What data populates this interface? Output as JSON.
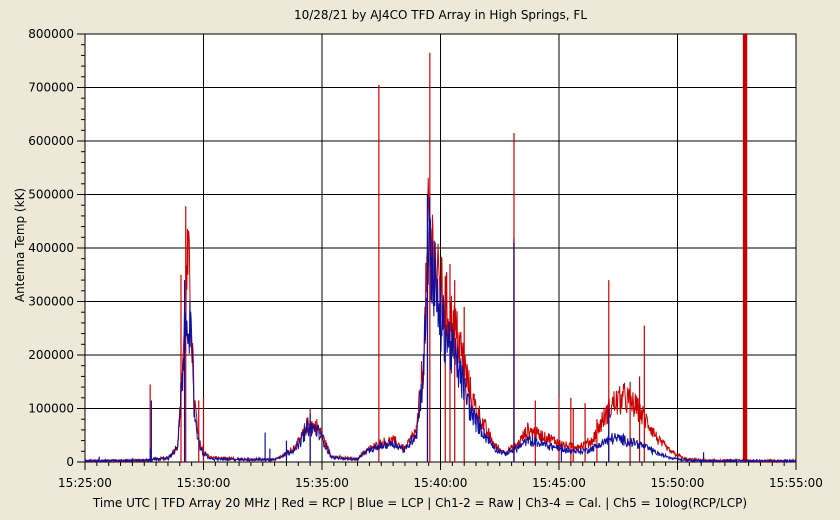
{
  "chart_data": {
    "type": "line",
    "title": "10/28/21  by  AJ4CO TFD Array  in  High Springs, FL",
    "ylabel": "Antenna Temp (kK)",
    "caption": "Time UTC | TFD Array 20 MHz | Red = RCP | Blue = LCP | Ch1-2 = Raw | Ch3-4 = Cal. | Ch5 = 10log(RCP/LCP)",
    "x_ticks": [
      "15:25:00",
      "15:30:00",
      "15:35:00",
      "15:40:00",
      "15:45:00",
      "15:50:00",
      "15:55:00"
    ],
    "xlim_minutes": [
      0,
      30
    ],
    "ylim": [
      0,
      800000
    ],
    "y_ticks": [
      0,
      100000,
      200000,
      300000,
      400000,
      500000,
      600000,
      700000,
      800000
    ],
    "grid": true,
    "series": [
      {
        "name": "RCP",
        "color": "#cc0000",
        "baseline": [
          [
            0,
            2000
          ],
          [
            2.5,
            3000
          ],
          [
            3.5,
            8000
          ],
          [
            3.9,
            30000
          ],
          [
            4.0,
            90000
          ],
          [
            4.2,
            250000
          ],
          [
            4.35,
            380000
          ],
          [
            4.5,
            250000
          ],
          [
            4.6,
            120000
          ],
          [
            4.8,
            40000
          ],
          [
            5.0,
            20000
          ],
          [
            5.3,
            8000
          ],
          [
            6.5,
            5000
          ],
          [
            8.0,
            5000
          ],
          [
            8.5,
            15000
          ],
          [
            9.0,
            35000
          ],
          [
            9.4,
            70000
          ],
          [
            9.8,
            65000
          ],
          [
            10.1,
            40000
          ],
          [
            10.4,
            10000
          ],
          [
            11.5,
            5000
          ],
          [
            11.8,
            20000
          ],
          [
            12.5,
            35000
          ],
          [
            13.0,
            40000
          ],
          [
            13.5,
            25000
          ],
          [
            14.0,
            60000
          ],
          [
            14.3,
            200000
          ],
          [
            14.5,
            450000
          ],
          [
            14.9,
            330000
          ],
          [
            15.3,
            280000
          ],
          [
            15.8,
            220000
          ],
          [
            16.3,
            120000
          ],
          [
            16.8,
            70000
          ],
          [
            17.3,
            30000
          ],
          [
            17.7,
            18000
          ],
          [
            18.2,
            30000
          ],
          [
            18.7,
            60000
          ],
          [
            19.2,
            50000
          ],
          [
            19.8,
            40000
          ],
          [
            20.3,
            30000
          ],
          [
            21.0,
            30000
          ],
          [
            21.4,
            40000
          ],
          [
            21.8,
            75000
          ],
          [
            22.3,
            110000
          ],
          [
            22.8,
            120000
          ],
          [
            23.3,
            100000
          ],
          [
            23.8,
            70000
          ],
          [
            24.2,
            40000
          ],
          [
            24.7,
            20000
          ],
          [
            25.3,
            6000
          ],
          [
            26.0,
            3000
          ],
          [
            30,
            2000
          ]
        ],
        "spikes": [
          [
            2.75,
            145000
          ],
          [
            4.05,
            350000
          ],
          [
            4.25,
            478000
          ],
          [
            4.8,
            115000
          ],
          [
            5.0,
            120000
          ],
          [
            9.5,
            100000
          ],
          [
            12.4,
            705000
          ],
          [
            14.45,
            500000
          ],
          [
            14.55,
            765000
          ],
          [
            15.2,
            300000
          ],
          [
            15.4,
            370000
          ],
          [
            15.6,
            340000
          ],
          [
            16.0,
            290000
          ],
          [
            18.1,
            420000
          ],
          [
            18.1,
            615000
          ],
          [
            19.0,
            115000
          ],
          [
            20.0,
            120000
          ],
          [
            20.5,
            120000
          ],
          [
            20.6,
            100000
          ],
          [
            21.1,
            110000
          ],
          [
            21.6,
            80000
          ],
          [
            22.1,
            340000
          ],
          [
            23.0,
            150000
          ],
          [
            23.4,
            160000
          ],
          [
            23.6,
            255000
          ],
          [
            27.8,
            800000
          ],
          [
            27.85,
            800000
          ],
          [
            27.9,
            800000
          ]
        ]
      },
      {
        "name": "LCP",
        "color": "#1010a0",
        "baseline": [
          [
            0,
            2000
          ],
          [
            2.5,
            3000
          ],
          [
            3.5,
            7000
          ],
          [
            3.9,
            25000
          ],
          [
            4.0,
            80000
          ],
          [
            4.2,
            220000
          ],
          [
            4.35,
            300000
          ],
          [
            4.5,
            200000
          ],
          [
            4.6,
            100000
          ],
          [
            4.8,
            35000
          ],
          [
            5.0,
            15000
          ],
          [
            5.3,
            6000
          ],
          [
            6.5,
            4000
          ],
          [
            8.0,
            5000
          ],
          [
            8.5,
            15000
          ],
          [
            9.0,
            30000
          ],
          [
            9.4,
            65000
          ],
          [
            9.8,
            60000
          ],
          [
            10.1,
            35000
          ],
          [
            10.4,
            8000
          ],
          [
            11.5,
            5000
          ],
          [
            11.8,
            18000
          ],
          [
            12.5,
            30000
          ],
          [
            13.0,
            35000
          ],
          [
            13.5,
            22000
          ],
          [
            14.0,
            55000
          ],
          [
            14.3,
            180000
          ],
          [
            14.5,
            420000
          ],
          [
            14.9,
            280000
          ],
          [
            15.3,
            230000
          ],
          [
            15.8,
            170000
          ],
          [
            16.3,
            90000
          ],
          [
            16.8,
            55000
          ],
          [
            17.3,
            25000
          ],
          [
            17.7,
            15000
          ],
          [
            18.2,
            25000
          ],
          [
            18.7,
            40000
          ],
          [
            19.2,
            35000
          ],
          [
            19.8,
            28000
          ],
          [
            20.3,
            22000
          ],
          [
            21.0,
            20000
          ],
          [
            21.4,
            25000
          ],
          [
            21.8,
            35000
          ],
          [
            22.3,
            45000
          ],
          [
            22.8,
            40000
          ],
          [
            23.3,
            35000
          ],
          [
            23.8,
            25000
          ],
          [
            24.2,
            15000
          ],
          [
            24.7,
            8000
          ],
          [
            25.3,
            4000
          ],
          [
            26.0,
            2000
          ],
          [
            30,
            2000
          ]
        ],
        "spikes": [
          [
            0.6,
            10000
          ],
          [
            2.75,
            25000
          ],
          [
            2.8,
            115000
          ],
          [
            4.2,
            340000
          ],
          [
            7.6,
            55000
          ],
          [
            7.8,
            25000
          ],
          [
            8.5,
            40000
          ],
          [
            9.5,
            90000
          ],
          [
            14.45,
            500000
          ],
          [
            18.1,
            410000
          ],
          [
            20.1,
            35000
          ],
          [
            22.1,
            100000
          ],
          [
            26.1,
            18000
          ]
        ]
      }
    ]
  }
}
